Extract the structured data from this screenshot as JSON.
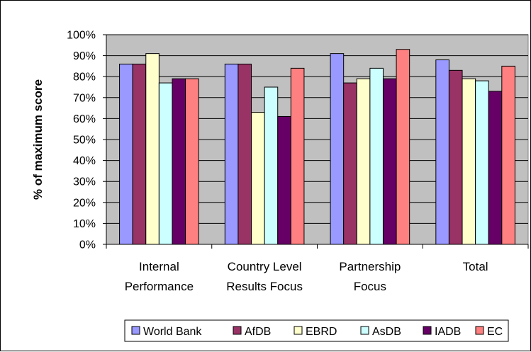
{
  "chart_data": {
    "type": "bar",
    "ylabel": "% of maximum score",
    "xlabel": "",
    "ylim": [
      0,
      100
    ],
    "yticks": [
      0,
      10,
      20,
      30,
      40,
      50,
      60,
      70,
      80,
      90,
      100
    ],
    "ytick_labels": [
      "0%",
      "10%",
      "20%",
      "30%",
      "40%",
      "50%",
      "60%",
      "70%",
      "80%",
      "90%",
      "100%"
    ],
    "grid": true,
    "legend_position": "bottom",
    "plot_background": "#c0c0c0",
    "categories": [
      [
        "Internal",
        "Performance"
      ],
      [
        "Country Level",
        "Results Focus"
      ],
      [
        "Partnership",
        "Focus"
      ],
      [
        "Total"
      ]
    ],
    "series": [
      {
        "name": "World Bank",
        "color": "#9999ff",
        "values": [
          86,
          86,
          91,
          88
        ]
      },
      {
        "name": "AfDB",
        "color": "#993366",
        "values": [
          86,
          86,
          77,
          83
        ]
      },
      {
        "name": "EBRD",
        "color": "#ffffcc",
        "values": [
          91,
          63,
          79,
          79
        ]
      },
      {
        "name": "AsDB",
        "color": "#ccffff",
        "values": [
          77,
          75,
          84,
          78
        ]
      },
      {
        "name": "IADB",
        "color": "#660066",
        "values": [
          79,
          61,
          79,
          73
        ]
      },
      {
        "name": "EC",
        "color": "#ff8080",
        "values": [
          79,
          84,
          93,
          85
        ]
      }
    ]
  }
}
